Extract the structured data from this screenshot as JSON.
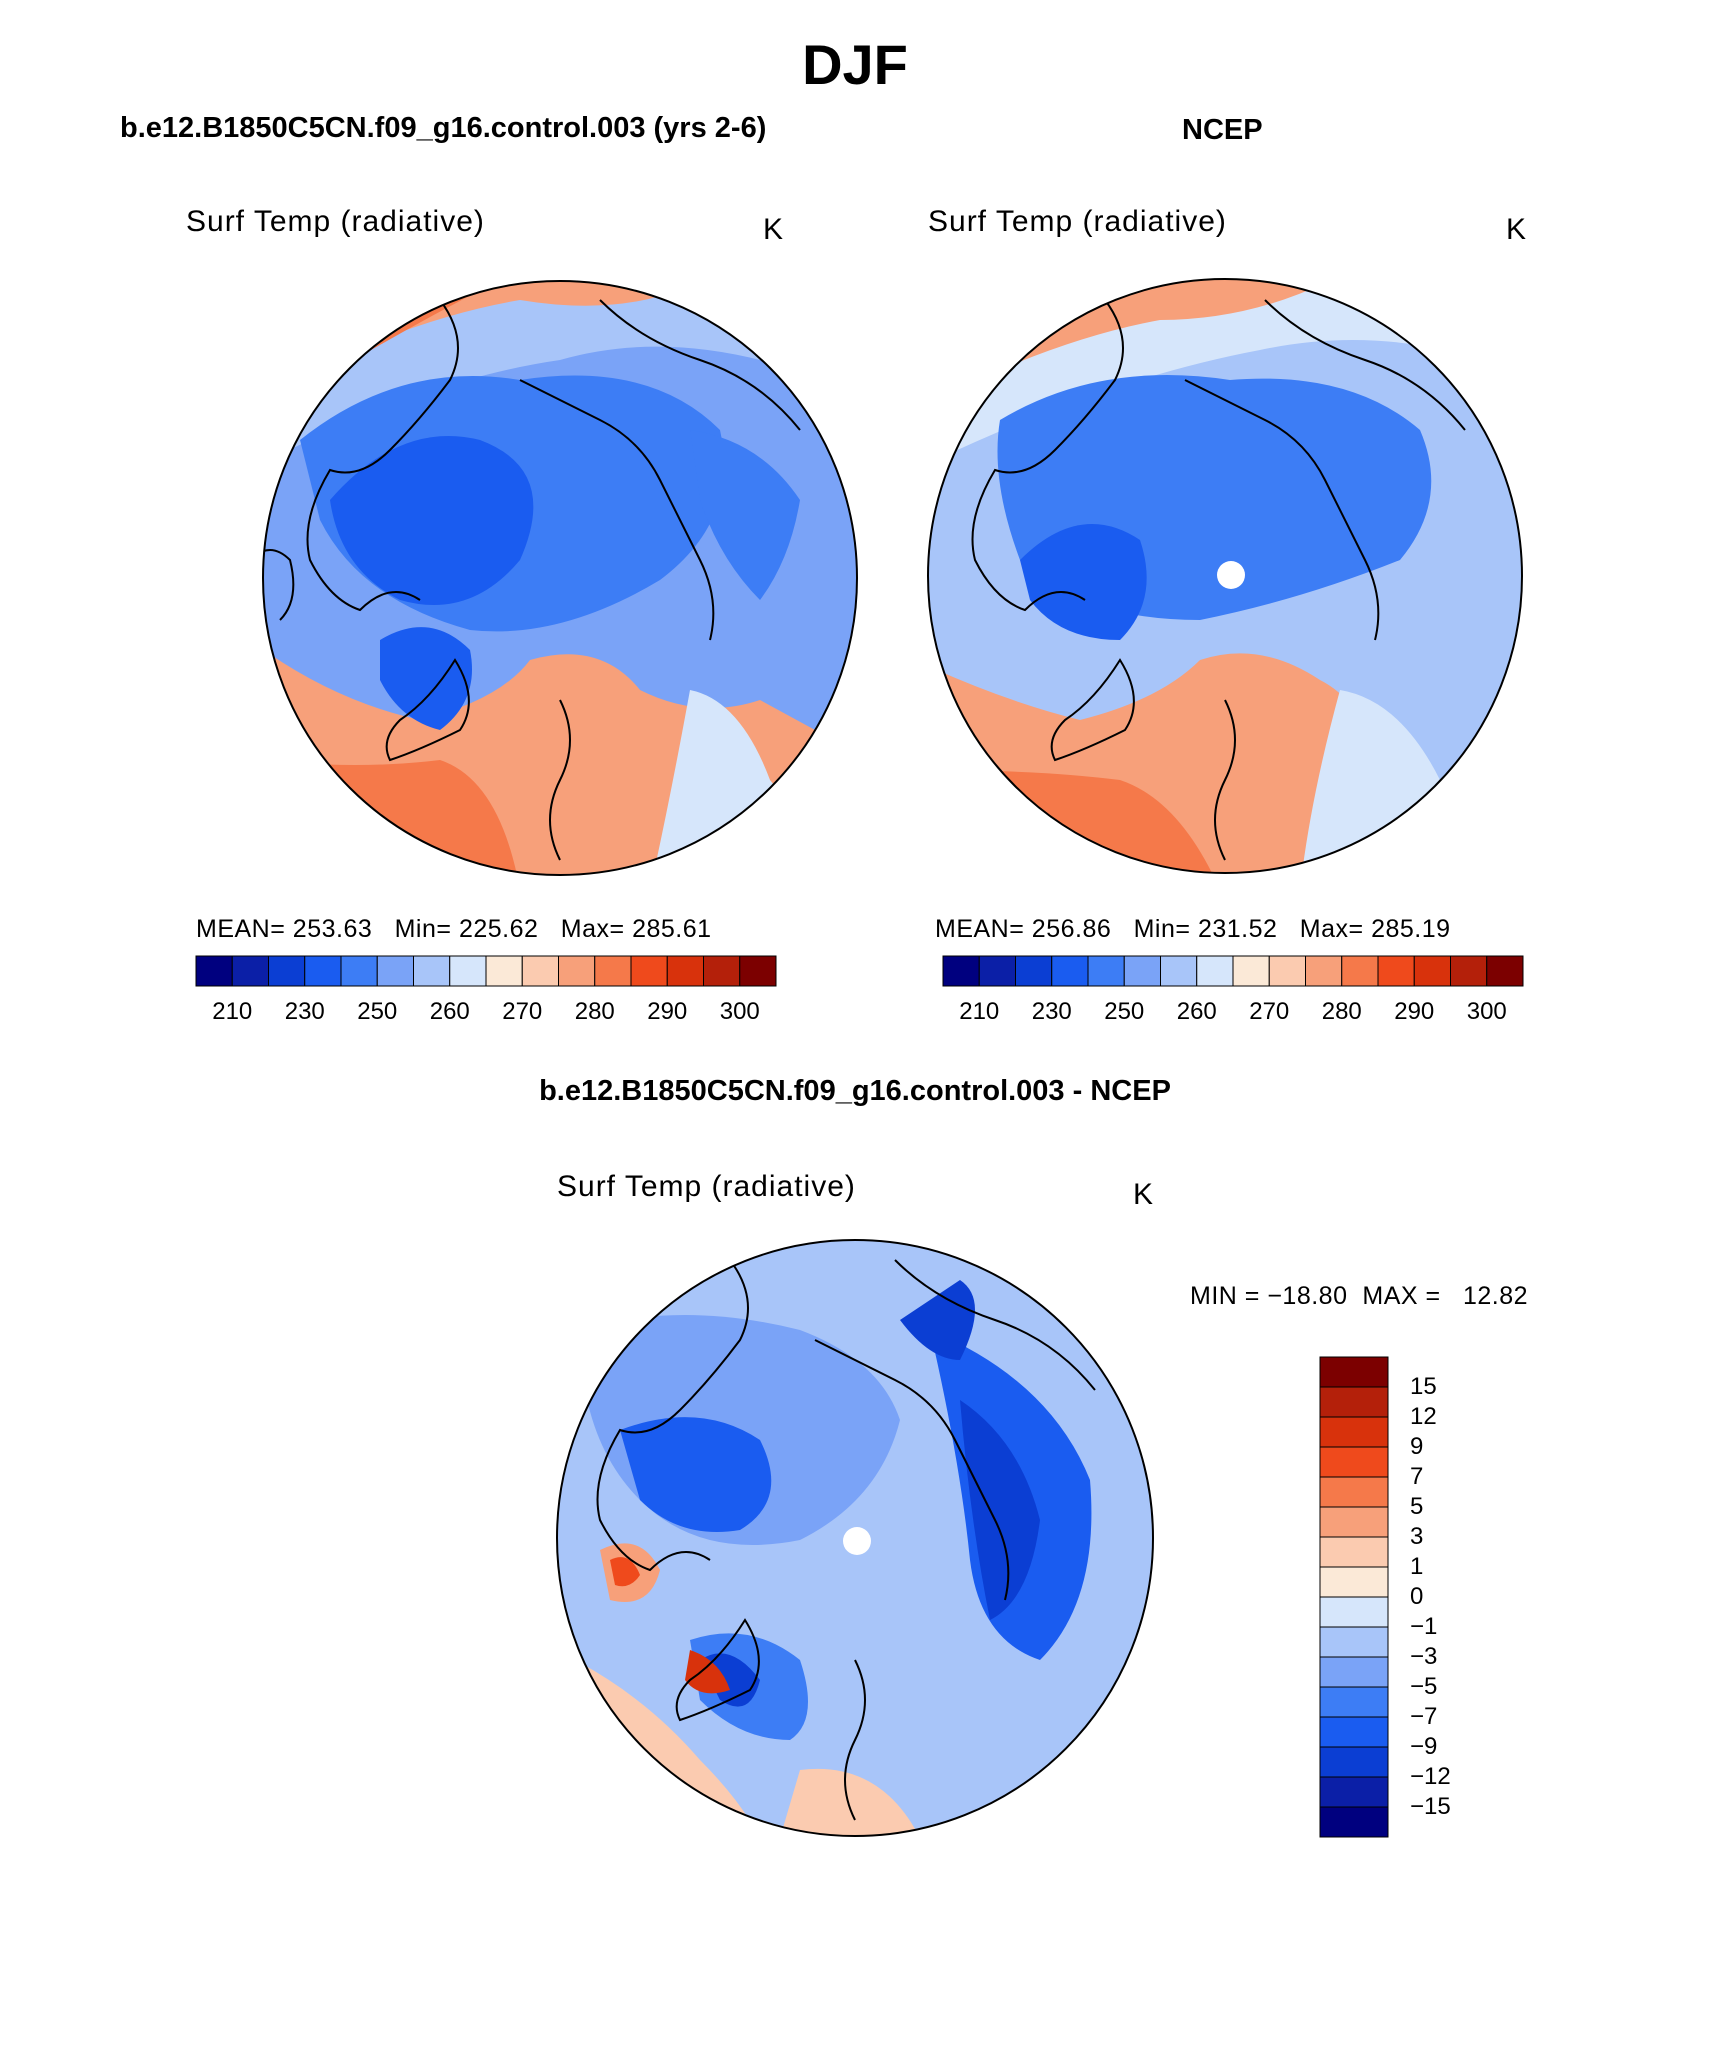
{
  "figure": {
    "season_title": "DJF",
    "case_title": "b.e12.B1850C5CN.f09_g16.control.003 (yrs 2-6)",
    "obs_title": "NCEP",
    "diff_title": "b.e12.B1850C5CN.f09_g16.control.003 - NCEP"
  },
  "panels": {
    "model": {
      "variable": "Surf Temp (radiative)",
      "units": "K",
      "stats": {
        "mean_label": "MEAN=",
        "mean": "253.63",
        "min_label": "Min=",
        "min": "225.62",
        "max_label": "Max=",
        "max": "285.61"
      }
    },
    "obs": {
      "variable": "Surf Temp (radiative)",
      "units": "K",
      "stats": {
        "mean_label": "MEAN=",
        "mean": "256.86",
        "min_label": "Min=",
        "min": "231.52",
        "max_label": "Max=",
        "max": "285.19"
      }
    },
    "diff": {
      "variable": "Surf Temp (radiative)",
      "units": "K",
      "stats": {
        "min_label": "MIN =",
        "min": "−18.80",
        "max_label": "MAX =",
        "max": "12.82"
      }
    }
  },
  "colorbars": {
    "absolute": {
      "colors": [
        "#00007f",
        "#0b1fa7",
        "#0b3ed3",
        "#1a5cf0",
        "#3d7df5",
        "#7aa3f7",
        "#a8c5f9",
        "#d6e6fb",
        "#fbe9d7",
        "#fbcbb0",
        "#f7a07a",
        "#f5794a",
        "#ef4a1c",
        "#d8320c",
        "#b4200a",
        "#7c0000"
      ],
      "tick_labels": [
        "210",
        "230",
        "250",
        "260",
        "270",
        "280",
        "290",
        "300"
      ]
    },
    "difference": {
      "colors": [
        "#7c0000",
        "#b4200a",
        "#d8320c",
        "#ef4a1c",
        "#f5794a",
        "#f7a07a",
        "#fbcbb0",
        "#fbe9d7",
        "#d6e6fb",
        "#a8c5f9",
        "#7aa3f7",
        "#3d7df5",
        "#1a5cf0",
        "#0b3ed3",
        "#0b1fa7",
        "#00007f"
      ],
      "tick_labels": [
        "15",
        "12",
        "9",
        "7",
        "5",
        "3",
        "1",
        "0",
        "−1",
        "−3",
        "−5",
        "−7",
        "−9",
        "−12",
        "−15"
      ]
    }
  },
  "chart_data": {
    "type": "heatmap",
    "projection": "north-polar-stereographic",
    "panels": [
      {
        "name": "model",
        "field": "Surf Temp (radiative)",
        "units": "K",
        "mean": 253.63,
        "min": 225.62,
        "max": 285.61,
        "levels": [
          210,
          220,
          230,
          240,
          250,
          255,
          260,
          265,
          270,
          275,
          280,
          285,
          290,
          295,
          300
        ]
      },
      {
        "name": "obs",
        "field": "Surf Temp (radiative)",
        "units": "K",
        "mean": 256.86,
        "min": 231.52,
        "max": 285.19,
        "levels": [
          210,
          220,
          230,
          240,
          250,
          255,
          260,
          265,
          270,
          275,
          280,
          285,
          290,
          295,
          300
        ]
      },
      {
        "name": "diff",
        "field": "Surf Temp (radiative)",
        "units": "K",
        "min": -18.8,
        "max": 12.82,
        "levels": [
          -15,
          -12,
          -9,
          -7,
          -5,
          -3,
          -1,
          0,
          1,
          3,
          5,
          7,
          9,
          12,
          15
        ]
      }
    ]
  }
}
